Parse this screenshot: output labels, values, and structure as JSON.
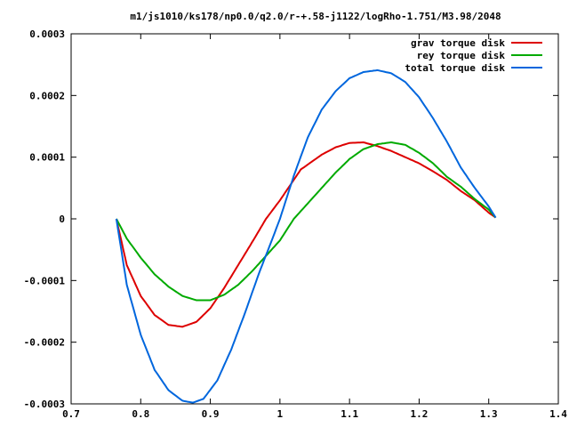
{
  "chart_data": {
    "type": "line",
    "title": "m1/js1010/ks178/np0.0/q2.0/r-+.58-j1122/logRho-1.751/M3.98/2048",
    "xlabel": "",
    "ylabel": "",
    "xlim": [
      0.7,
      1.4
    ],
    "ylim": [
      -0.0003,
      0.0003
    ],
    "xticks": [
      0.7,
      0.8,
      0.9,
      1.0,
      1.1,
      1.2,
      1.3,
      1.4
    ],
    "xtick_labels": [
      "0.7",
      "0.8",
      "0.9",
      "1",
      "1.1",
      "1.2",
      "1.3",
      "1.4"
    ],
    "yticks": [
      -0.0003,
      -0.0002,
      -0.0001,
      0,
      0.0001,
      0.0002,
      0.0003
    ],
    "ytick_labels": [
      "-0.0003",
      "-0.0002",
      "-0.0001",
      "0",
      "0.0001",
      "0.0002",
      "0.0003"
    ],
    "grid": false,
    "legend_position": "top-right",
    "series": [
      {
        "name": "grav torque disk",
        "color": "#dd0000",
        "x": [
          0.765,
          0.78,
          0.8,
          0.82,
          0.84,
          0.86,
          0.88,
          0.9,
          0.92,
          0.94,
          0.96,
          0.98,
          1.0,
          1.03,
          1.06,
          1.08,
          1.1,
          1.12,
          1.14,
          1.16,
          1.18,
          1.2,
          1.22,
          1.24,
          1.26,
          1.28,
          1.3,
          1.31
        ],
        "y": [
          0.0,
          -7.5e-05,
          -0.000125,
          -0.000156,
          -0.000172,
          -0.000175,
          -0.000167,
          -0.000145,
          -0.000112,
          -7.5e-05,
          -3.8e-05,
          0.0,
          3e-05,
          8e-05,
          0.000104,
          0.000116,
          0.000123,
          0.000124,
          0.000118,
          0.00011,
          0.0001,
          9e-05,
          7.7e-05,
          6.3e-05,
          4.5e-05,
          3e-05,
          1e-05,
          2e-06
        ]
      },
      {
        "name": "rey torque disk",
        "color": "#00aa00",
        "x": [
          0.765,
          0.78,
          0.8,
          0.82,
          0.84,
          0.86,
          0.88,
          0.9,
          0.92,
          0.94,
          0.96,
          0.98,
          1.0,
          1.02,
          1.04,
          1.06,
          1.08,
          1.1,
          1.12,
          1.14,
          1.16,
          1.18,
          1.2,
          1.22,
          1.24,
          1.26,
          1.28,
          1.3,
          1.31
        ],
        "y": [
          0.0,
          -3.2e-05,
          -6.3e-05,
          -9e-05,
          -0.00011,
          -0.000125,
          -0.000132,
          -0.000132,
          -0.000123,
          -0.000107,
          -8.5e-05,
          -6e-05,
          -3.5e-05,
          0.0,
          2.5e-05,
          5e-05,
          7.5e-05,
          9.7e-05,
          0.000113,
          0.000121,
          0.000124,
          0.00012,
          0.000107,
          9e-05,
          6.8e-05,
          5.2e-05,
          3.2e-05,
          1.5e-05,
          2e-06
        ]
      },
      {
        "name": "total torque disk",
        "color": "#0066dd",
        "x": [
          0.765,
          0.78,
          0.8,
          0.82,
          0.84,
          0.86,
          0.875,
          0.89,
          0.91,
          0.93,
          0.95,
          0.97,
          0.99,
          1.0,
          1.02,
          1.04,
          1.06,
          1.08,
          1.1,
          1.12,
          1.14,
          1.16,
          1.18,
          1.2,
          1.22,
          1.24,
          1.26,
          1.28,
          1.3,
          1.31
        ],
        "y": [
          0.0,
          -0.000107,
          -0.000188,
          -0.000245,
          -0.000278,
          -0.000295,
          -0.000298,
          -0.000292,
          -0.000262,
          -0.000212,
          -0.000152,
          -8.8e-05,
          -3e-05,
          0.0,
          7e-05,
          0.000132,
          0.000177,
          0.000207,
          0.000228,
          0.000238,
          0.000241,
          0.000236,
          0.000222,
          0.000197,
          0.000163,
          0.000125,
          8.3e-05,
          5e-05,
          2e-05,
          2e-06
        ]
      }
    ]
  }
}
